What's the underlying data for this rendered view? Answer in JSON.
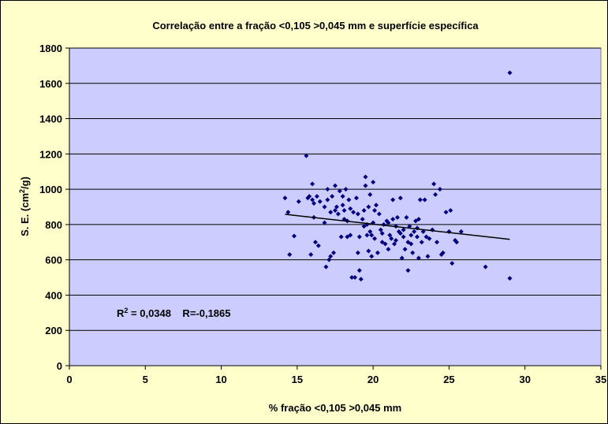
{
  "chart_data": {
    "type": "scatter",
    "title": "Correlação entre a fração <0,105 >0,045 mm e superfície específica",
    "xlabel": "% fração <0,105 >0,045 mm",
    "ylabel_parts": [
      "S. E. (cm",
      "2",
      "/g)"
    ],
    "annotation_parts": [
      "R",
      "2",
      " = 0,0348    R=-0,1865"
    ],
    "xlim": [
      0,
      35
    ],
    "xticks": [
      0,
      5,
      10,
      15,
      20,
      25,
      30,
      35
    ],
    "ylim": [
      0,
      1800
    ],
    "yticks": [
      0,
      200,
      400,
      600,
      800,
      1000,
      1200,
      1400,
      1600,
      1800
    ],
    "grid": true,
    "color": "#000080",
    "x": [
      14.2,
      14.4,
      14.5,
      14.8,
      15.1,
      15.6,
      15.7,
      15.8,
      15.9,
      16.0,
      16.0,
      16.1,
      16.1,
      16.2,
      16.3,
      16.4,
      16.5,
      16.8,
      16.9,
      17.0,
      17.0,
      17.1,
      17.2,
      17.3,
      17.4,
      17.5,
      17.5,
      17.6,
      17.7,
      17.8,
      17.9,
      18.0,
      18.0,
      18.1,
      18.2,
      18.3,
      18.4,
      18.5,
      18.5,
      18.6,
      18.7,
      18.8,
      18.9,
      19.0,
      19.0,
      19.1,
      19.1,
      19.2,
      19.3,
      19.4,
      19.5,
      19.5,
      19.6,
      19.6,
      19.7,
      19.7,
      19.8,
      19.8,
      19.9,
      20.0,
      20.0,
      20.1,
      20.1,
      20.2,
      20.3,
      20.4,
      20.5,
      20.6,
      20.7,
      20.8,
      20.9,
      21.0,
      21.0,
      21.1,
      21.2,
      21.3,
      21.4,
      21.5,
      21.5,
      21.6,
      21.7,
      21.8,
      21.9,
      22.0,
      22.0,
      22.1,
      22.2,
      22.3,
      22.3,
      22.4,
      22.5,
      22.6,
      22.7,
      22.8,
      22.9,
      23.0,
      23.0,
      23.1,
      23.2,
      23.3,
      23.4,
      23.5,
      23.6,
      23.7,
      23.9,
      24.0,
      24.1,
      24.2,
      24.4,
      24.5,
      24.6,
      24.8,
      25.0,
      25.1,
      25.2,
      25.4,
      25.5,
      25.8,
      27.4,
      29.0,
      29.0,
      17.2,
      18.1,
      19.4,
      20.6,
      21.8,
      22.5,
      16.8,
      18.3,
      19.9,
      21.3,
      22.9
    ],
    "y": [
      950,
      870,
      630,
      735,
      930,
      1190,
      950,
      960,
      630,
      1030,
      940,
      920,
      840,
      700,
      960,
      680,
      930,
      810,
      560,
      940,
      1000,
      600,
      870,
      960,
      640,
      1020,
      880,
      900,
      860,
      990,
      730,
      960,
      910,
      880,
      1000,
      820,
      940,
      740,
      890,
      500,
      870,
      500,
      950,
      640,
      860,
      540,
      730,
      490,
      830,
      880,
      1020,
      1070,
      740,
      800,
      900,
      650,
      970,
      760,
      740,
      1040,
      810,
      720,
      880,
      910,
      640,
      860,
      770,
      700,
      800,
      690,
      820,
      810,
      660,
      740,
      720,
      940,
      690,
      790,
      710,
      840,
      760,
      950,
      610,
      770,
      730,
      660,
      840,
      700,
      540,
      790,
      740,
      640,
      760,
      820,
      780,
      830,
      610,
      940,
      700,
      760,
      940,
      730,
      620,
      720,
      770,
      1030,
      970,
      700,
      1000,
      630,
      640,
      870,
      760,
      880,
      580,
      710,
      700,
      760,
      560,
      1660,
      495,
      620,
      830,
      790,
      750,
      750,
      690,
      900,
      730,
      620,
      830,
      730
    ],
    "trendline": {
      "x": [
        14.2,
        29.0
      ],
      "y": [
        858,
        716
      ]
    }
  }
}
